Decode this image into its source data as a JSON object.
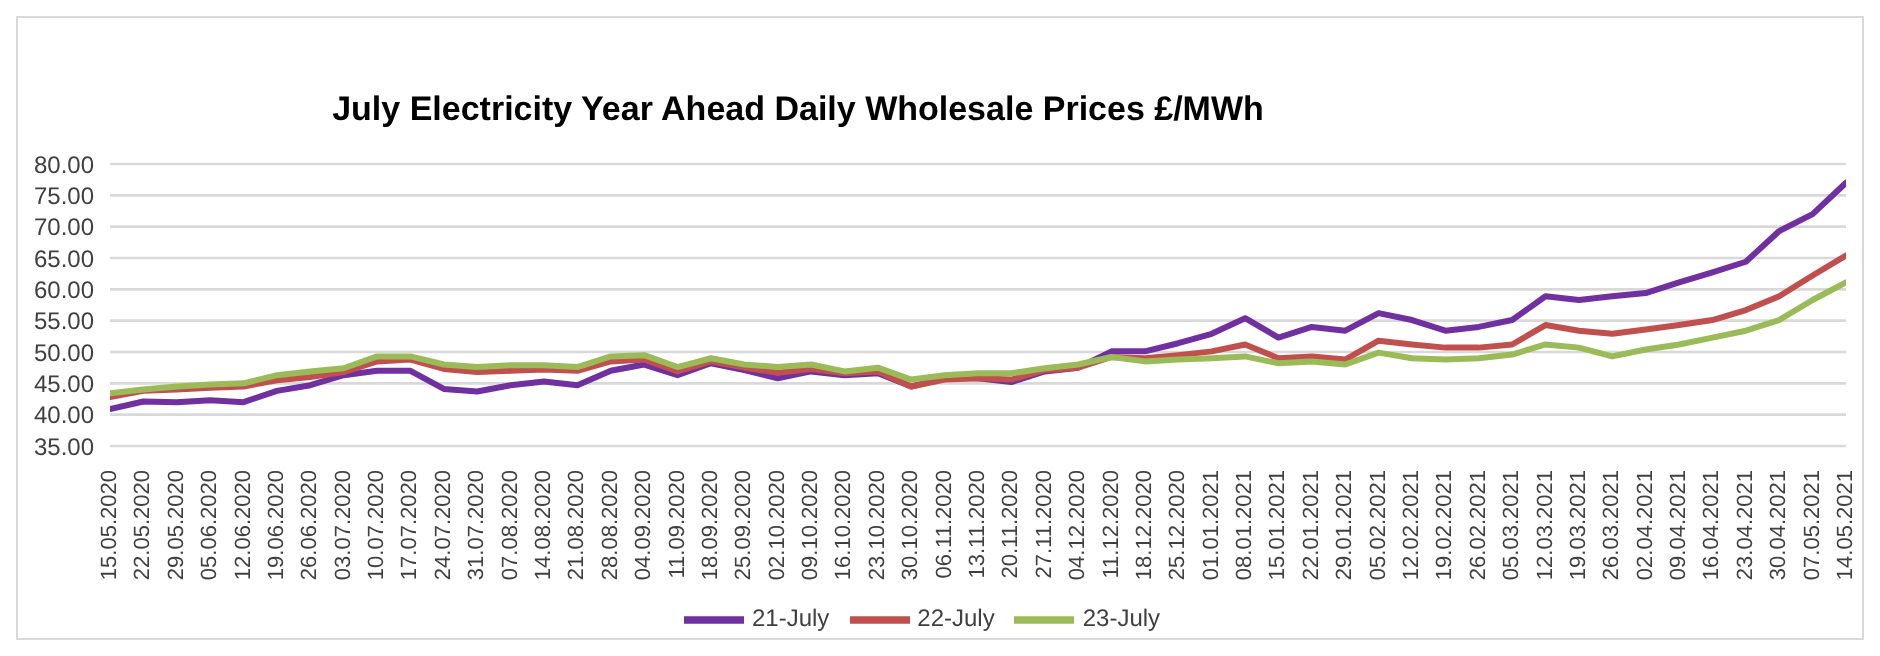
{
  "chart_data": {
    "type": "line",
    "title": "July Electricity Year Ahead Daily Wholesale Prices £/MWh",
    "categories": [
      "15.05.2020",
      "22.05.2020",
      "29.05.2020",
      "05.06.2020",
      "12.06.2020",
      "19.06.2020",
      "26.06.2020",
      "03.07.2020",
      "10.07.2020",
      "17.07.2020",
      "24.07.2020",
      "31.07.2020",
      "07.08.2020",
      "14.08.2020",
      "21.08.2020",
      "28.08.2020",
      "04.09.2020",
      "11.09.2020",
      "18.09.2020",
      "25.09.2020",
      "02.10.2020",
      "09.10.2020",
      "16.10.2020",
      "23.10.2020",
      "30.10.2020",
      "06.11.2020",
      "13.11.2020",
      "20.11.2020",
      "27.11.2020",
      "04.12.2020",
      "11.12.2020",
      "18.12.2020",
      "25.12.2020",
      "01.01.2021",
      "08.01.2021",
      "15.01.2021",
      "22.01.2021",
      "29.01.2021",
      "05.02.2021",
      "12.02.2021",
      "19.02.2021",
      "26.02.2021",
      "05.03.2021",
      "12.03.2021",
      "19.03.2021",
      "26.03.2021",
      "02.04.2021",
      "09.04.2021",
      "16.04.2021",
      "23.04.2021",
      "30.04.2021",
      "07.05.2021",
      "14.05.2021"
    ],
    "series": [
      {
        "name": "21-July",
        "color": "#7030a0",
        "values": [
          40.9,
          42.1,
          42.0,
          42.3,
          42.0,
          43.8,
          44.7,
          46.3,
          47.0,
          47.0,
          44.1,
          43.7,
          44.7,
          45.3,
          44.7,
          47.0,
          48.0,
          46.3,
          48.2,
          47.1,
          45.8,
          46.9,
          46.3,
          46.6,
          44.5,
          45.8,
          45.8,
          45.2,
          46.9,
          47.5,
          50.1,
          50.1,
          51.4,
          52.9,
          55.4,
          52.3,
          54.0,
          53.4,
          56.2,
          55.1,
          53.4,
          54.0,
          55.1,
          58.9,
          58.3,
          58.9,
          59.4,
          61.1,
          62.7,
          64.4,
          69.3,
          72.0,
          77.0
        ]
      },
      {
        "name": "22-July",
        "color": "#c0504d",
        "values": [
          42.8,
          43.8,
          44.0,
          44.3,
          44.5,
          45.5,
          46.0,
          46.8,
          48.5,
          48.8,
          47.3,
          46.8,
          47.0,
          47.2,
          47.0,
          48.5,
          48.8,
          46.9,
          48.5,
          47.5,
          46.7,
          47.3,
          46.6,
          46.9,
          44.5,
          45.6,
          45.8,
          45.6,
          47.1,
          47.5,
          49.2,
          49.0,
          49.5,
          50.1,
          51.2,
          49.0,
          49.3,
          48.8,
          51.8,
          51.2,
          50.7,
          50.7,
          51.2,
          54.3,
          53.4,
          52.9,
          53.6,
          54.3,
          55.1,
          56.7,
          58.9,
          62.2,
          65.4
        ]
      },
      {
        "name": "23-July",
        "color": "#9bbb59",
        "values": [
          43.4,
          44.0,
          44.5,
          44.8,
          45.0,
          46.3,
          46.9,
          47.4,
          49.3,
          49.3,
          48.0,
          47.6,
          47.9,
          47.9,
          47.6,
          49.3,
          49.5,
          47.6,
          49.0,
          48.0,
          47.6,
          48.0,
          46.9,
          47.5,
          45.6,
          46.3,
          46.6,
          46.6,
          47.4,
          48.0,
          49.2,
          48.5,
          48.8,
          49.0,
          49.3,
          48.2,
          48.5,
          48.0,
          49.9,
          49.0,
          48.8,
          49.0,
          49.6,
          51.2,
          50.7,
          49.3,
          50.4,
          51.2,
          52.3,
          53.4,
          55.1,
          58.3,
          61.1
        ]
      }
    ],
    "ylim": [
      35,
      80
    ],
    "yticks": [
      {
        "value": 35,
        "label": "35.00"
      },
      {
        "value": 40,
        "label": "40.00"
      },
      {
        "value": 45,
        "label": "45.00"
      },
      {
        "value": 50,
        "label": "50.00"
      },
      {
        "value": 55,
        "label": "55.00"
      },
      {
        "value": 60,
        "label": "60.00"
      },
      {
        "value": 65,
        "label": "65.00"
      },
      {
        "value": 70,
        "label": "70.00"
      },
      {
        "value": 75,
        "label": "75.00"
      },
      {
        "value": 80,
        "label": "80.00"
      }
    ],
    "grid": "y",
    "legend": "bottom",
    "marker": "none",
    "line_style": "solid"
  }
}
